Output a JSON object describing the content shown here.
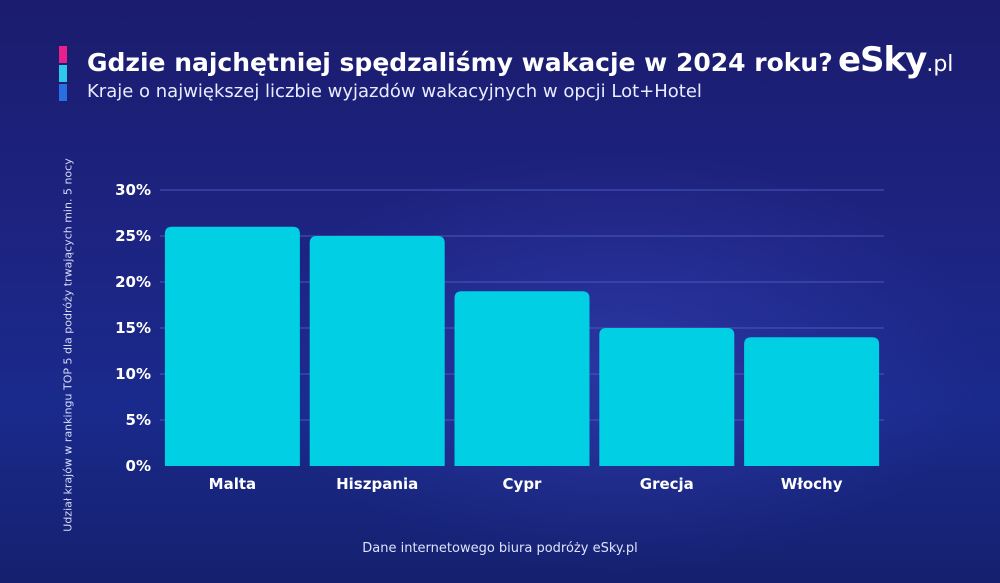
{
  "header": {
    "title": "Gdzie najchętniej spędzaliśmy wakacje w 2024 roku?",
    "subtitle": "Kraje o największej liczbie wyjazdów wakacyjnych w opcji Lot+Hotel",
    "accent_colors": [
      "#e8208a",
      "#2ec8e8",
      "#2a6fe0"
    ]
  },
  "logo": {
    "main": "eSky",
    "tld": ".pl"
  },
  "footer": {
    "source": "Dane internetowego biura podróży eSky.pl"
  },
  "colors": {
    "bar": "#00cfe4",
    "gridline": "#4a58b8",
    "tick_text": "#ffffff"
  },
  "chart_data": {
    "type": "bar",
    "title": "Gdzie najchętniej spędzaliśmy wakacje w 2024 roku?",
    "subtitle": "Kraje o największej liczbie wyjazdów wakacyjnych w opcji Lot+Hotel",
    "xlabel": "",
    "ylabel": "Udział krajów w rankingu TOP 5 dla podróży trwających min. 5 nocy",
    "categories": [
      "Malta",
      "Hiszpania",
      "Cypr",
      "Grecja",
      "Włochy"
    ],
    "values": [
      26,
      25,
      19,
      15,
      14
    ],
    "ylim": [
      0,
      30
    ],
    "yticks": [
      0,
      5,
      10,
      15,
      20,
      25,
      30
    ],
    "ytick_labels": [
      "0%",
      "5%",
      "10%",
      "15%",
      "20%",
      "25%",
      "30%"
    ],
    "grid": true,
    "legend": "none"
  }
}
